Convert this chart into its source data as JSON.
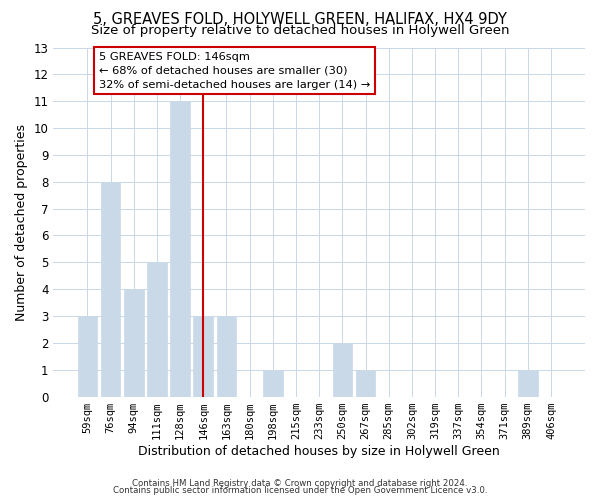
{
  "title": "5, GREAVES FOLD, HOLYWELL GREEN, HALIFAX, HX4 9DY",
  "subtitle": "Size of property relative to detached houses in Holywell Green",
  "xlabel": "Distribution of detached houses by size in Holywell Green",
  "ylabel": "Number of detached properties",
  "bar_labels": [
    "59sqm",
    "76sqm",
    "94sqm",
    "111sqm",
    "128sqm",
    "146sqm",
    "163sqm",
    "180sqm",
    "198sqm",
    "215sqm",
    "233sqm",
    "250sqm",
    "267sqm",
    "285sqm",
    "302sqm",
    "319sqm",
    "337sqm",
    "354sqm",
    "371sqm",
    "389sqm",
    "406sqm"
  ],
  "bar_values": [
    3,
    8,
    4,
    5,
    11,
    3,
    3,
    0,
    1,
    0,
    0,
    2,
    1,
    0,
    0,
    0,
    0,
    0,
    0,
    1,
    0
  ],
  "bar_color": "#c9d9e8",
  "vline_x": 5,
  "vline_color": "#cc0000",
  "ylim": [
    0,
    13
  ],
  "yticks": [
    0,
    1,
    2,
    3,
    4,
    5,
    6,
    7,
    8,
    9,
    10,
    11,
    12,
    13
  ],
  "annotation_line1": "5 GREAVES FOLD: 146sqm",
  "annotation_line2": "← 68% of detached houses are smaller (30)",
  "annotation_line3": "32% of semi-detached houses are larger (14) →",
  "footer1": "Contains HM Land Registry data © Crown copyright and database right 2024.",
  "footer2": "Contains public sector information licensed under the Open Government Licence v3.0.",
  "background_color": "#ffffff",
  "grid_color": "#c8d8e8",
  "title_fontsize": 10.5,
  "subtitle_fontsize": 9.5,
  "xlabel_fontsize": 9,
  "ylabel_fontsize": 9
}
